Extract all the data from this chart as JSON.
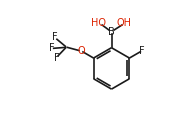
{
  "background_color": "#ffffff",
  "atom_color": "#1a1a1a",
  "oxygen_color": "#dd2200",
  "fluorine_color": "#1a1a1a",
  "boron_color": "#1a1a1a",
  "line_color": "#1a1a1a",
  "line_width": 1.2,
  "font_size": 7.0,
  "fig_width": 1.87,
  "fig_height": 1.26,
  "dpi": 100,
  "xlim": [
    0,
    10
  ],
  "ylim": [
    0,
    7
  ]
}
